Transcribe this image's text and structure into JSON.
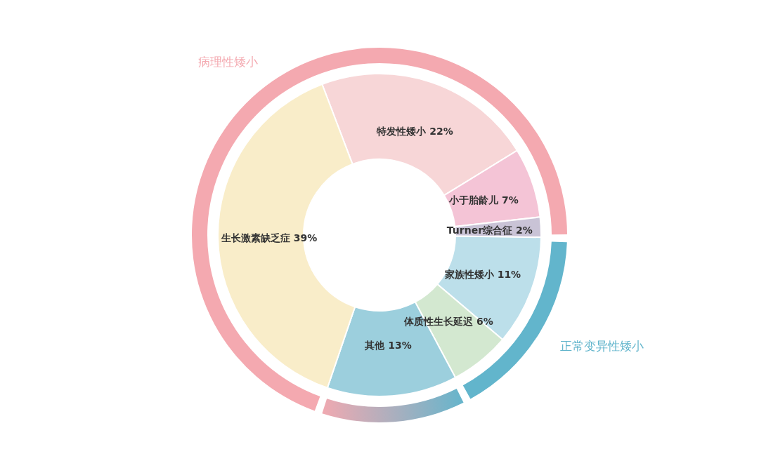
{
  "chart_data": [
    {
      "type": "donut",
      "categories": [
        "特发性矮小",
        "小于胎龄儿",
        "Turner综合征",
        "家族性矮小",
        "体质性生长延迟",
        "其他",
        "生长激素缺乏症"
      ],
      "values": [
        22,
        7,
        2,
        11,
        6,
        13,
        39
      ],
      "colors": [
        "#f7d6d7",
        "#f4c4d6",
        "#c9c3d6",
        "#bcdfea",
        "#d3e8d0",
        "#9ccfdd",
        "#f9edc9"
      ],
      "value_labels": [
        "22%",
        "7%",
        "2%",
        "11%",
        "6%",
        "13%",
        "39%"
      ]
    },
    {
      "type": "donut",
      "categories": [
        "正常变异性矮小",
        null,
        "病理性矮小"
      ],
      "values": [
        17,
        13,
        70
      ],
      "colors": [
        "#62b5cc",
        "#d0a9b8",
        "#f4a9b0"
      ]
    }
  ]
}
